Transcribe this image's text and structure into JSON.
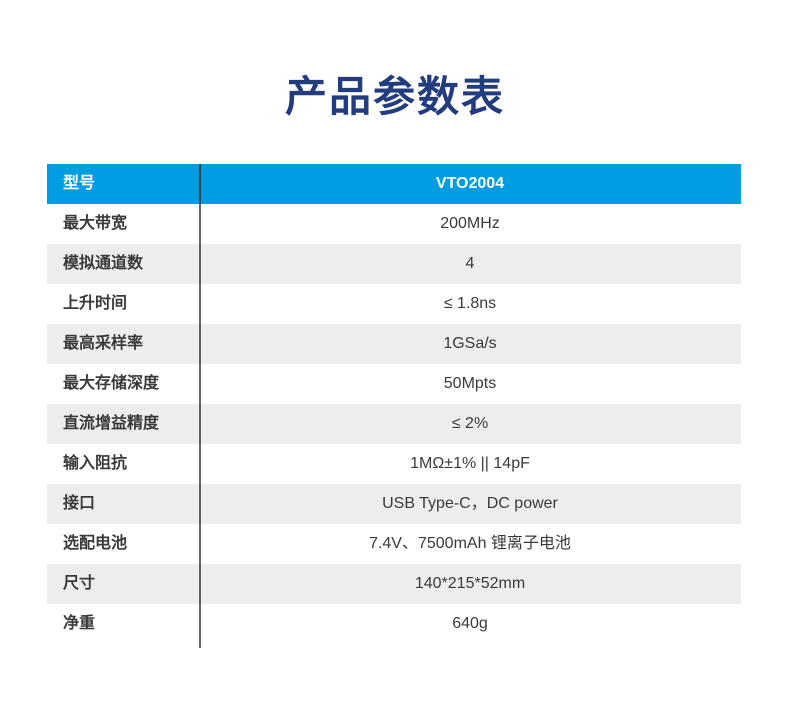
{
  "page": {
    "title": "产品参数表"
  },
  "colors": {
    "title_text": "#233c7d",
    "header_bg": "#009de2",
    "header_text": "#ffffff",
    "alt_row_bg": "#ededed",
    "body_text": "#3a3a3a",
    "column_divider": "#2a2a2e"
  },
  "table": {
    "header": {
      "label": "型号",
      "value": "VTO2004"
    },
    "rows": [
      {
        "label": "最大带宽",
        "value": "200MHz"
      },
      {
        "label": "模拟通道数",
        "value": "4"
      },
      {
        "label": "上升时间",
        "value": "≤ 1.8ns"
      },
      {
        "label": "最高采样率",
        "value": "1GSa/s"
      },
      {
        "label": "最大存储深度",
        "value": "50Mpts"
      },
      {
        "label": "直流增益精度",
        "value": "≤ 2%"
      },
      {
        "label": "输入阻抗",
        "value": "1MΩ±1% || 14pF"
      },
      {
        "label": "接口",
        "value": "USB Type-C，DC power"
      },
      {
        "label": "选配电池",
        "value": "7.4V、7500mAh 锂离子电池"
      },
      {
        "label": "尺寸",
        "value": "140*215*52mm"
      },
      {
        "label": "净重",
        "value": "640g"
      }
    ]
  }
}
